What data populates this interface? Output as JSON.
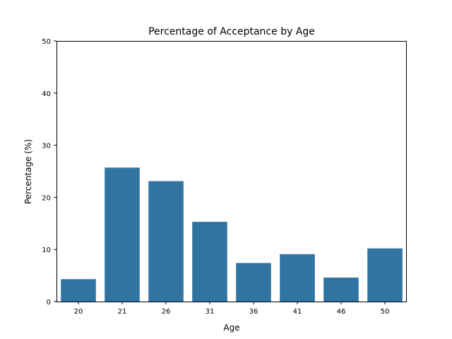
{
  "chart_data": {
    "type": "bar",
    "title": "Percentage of Acceptance by Age",
    "xlabel": "Age",
    "ylabel": "Percentage (%)",
    "categories": [
      "20",
      "21",
      "26",
      "31",
      "36",
      "41",
      "46",
      "50"
    ],
    "values": [
      4.3,
      25.7,
      23.1,
      15.3,
      7.4,
      9.1,
      4.6,
      10.2
    ],
    "ylim": [
      0,
      50
    ],
    "yticks": [
      0,
      10,
      20,
      30,
      40,
      50
    ],
    "grid": false,
    "legend": "none",
    "bar_color": "#3274a1"
  }
}
